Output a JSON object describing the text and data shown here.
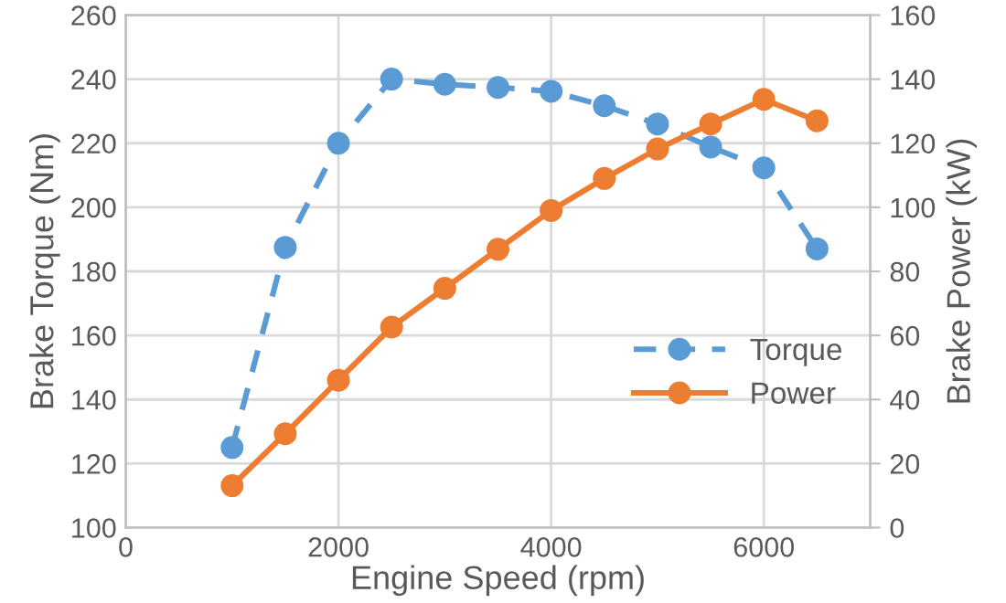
{
  "chart_data": {
    "type": "line",
    "xlabel": "Engine Speed (rpm)",
    "ylabel": "Brake Torque (Nm)",
    "y2label": "Brake Power (kW)",
    "x": [
      1000,
      1500,
      2000,
      2500,
      3000,
      3500,
      4000,
      4500,
      5000,
      5500,
      6000,
      6500
    ],
    "series": [
      {
        "name": "Torque",
        "color": "#5b9bd5",
        "line_style": "dashed",
        "values": [
          125,
          187.5,
          220,
          240,
          238.4,
          237.4,
          236.2,
          231.7,
          226,
          218.8,
          212.3,
          187
        ]
      },
      {
        "name": "Power",
        "color": "#ed7d31",
        "line_style": "solid",
        "axis": "y2",
        "values": [
          13.1,
          29.3,
          46,
          62.6,
          74.7,
          86.9,
          99,
          109,
          118.2,
          126,
          133.7,
          127
        ]
      }
    ],
    "xlim": [
      0,
      7000
    ],
    "xticks": [
      0,
      2000,
      4000,
      6000
    ],
    "ylim": [
      100,
      260
    ],
    "yticks": [
      100,
      120,
      140,
      160,
      180,
      200,
      220,
      240,
      260
    ],
    "y2lim": [
      0,
      160
    ],
    "y2ticks": [
      0,
      20,
      40,
      60,
      80,
      100,
      120,
      140,
      160
    ],
    "grid": true,
    "legend": "right",
    "marker": "circle"
  }
}
